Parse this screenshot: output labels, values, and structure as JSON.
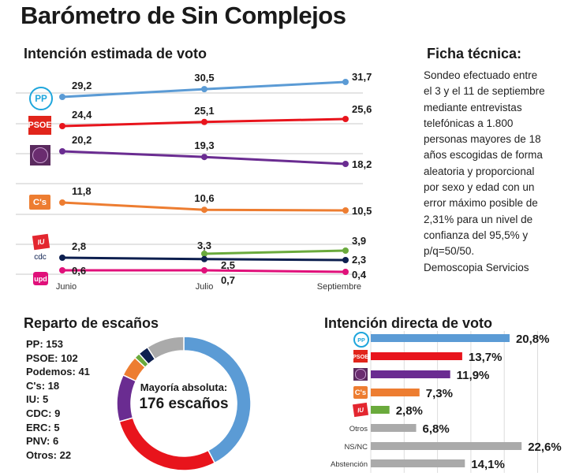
{
  "title": "Barómetro de Sin Complejos",
  "ficha": {
    "heading": "Ficha técnica:",
    "text": "Sondeo efectuado entre\nel 3 y el 11 de septiembre\nmediante entrevistas\ntelefónicas a 1.800\npersonas mayores de 18\naños escogidas de forma\naleatoria y proporcional\n por sexo y edad con un\nerror máximo posible de\n2,31% para un nivel de\nconfianza del 95,5% y\np/q=50/50.\nDemoscopia Servicios"
  },
  "logos": {
    "pp": "PP",
    "psoe": "PSOE",
    "cs": "C's",
    "iu": "IU",
    "cdc": "cdc",
    "upd": "upd"
  },
  "colors": {
    "pp": "#5b9bd5",
    "psoe": "#e8141c",
    "podemos": "#6a2c91",
    "cs": "#ed7d31",
    "iu": "#6aaa3c",
    "cdc": "#0d1f4f",
    "upd": "#e0107a",
    "otros": "#aaaaaa"
  },
  "chart_data": [
    {
      "type": "line",
      "title": "Intención estimada de voto",
      "categories": [
        "Junio",
        "Julio",
        "Septiembre"
      ],
      "grid": true,
      "series": [
        {
          "party": "pp",
          "values": [
            29.2,
            30.5,
            31.7
          ],
          "labels": [
            "29,2",
            "30,5",
            "31,7"
          ]
        },
        {
          "party": "psoe",
          "values": [
            24.4,
            25.1,
            25.6
          ],
          "labels": [
            "24,4",
            "25,1",
            "25,6"
          ]
        },
        {
          "party": "podemos",
          "values": [
            20.2,
            19.3,
            18.2
          ],
          "labels": [
            "20,2",
            "19,3",
            "18,2"
          ]
        },
        {
          "party": "cs",
          "values": [
            11.8,
            10.6,
            10.5
          ],
          "labels": [
            "11,8",
            "10,6",
            "10,5"
          ]
        },
        {
          "party": "iu",
          "values": [
            null,
            3.3,
            3.9
          ],
          "labels": [
            "",
            "3,3",
            "3,9"
          ]
        },
        {
          "party": "cdc",
          "values": [
            2.8,
            2.5,
            2.3
          ],
          "labels": [
            "2,8",
            "2,5",
            "2,3"
          ]
        },
        {
          "party": "upd",
          "values": [
            0.6,
            0.7,
            0.4
          ],
          "labels": [
            "0,6",
            "0,7",
            "0,4"
          ]
        }
      ]
    },
    {
      "type": "pie",
      "title": "Reparto de escaños",
      "center_text": [
        "Mayoría absoluta:",
        "176 escaños"
      ],
      "legend": [
        "PP: 153",
        "PSOE: 102",
        "Podemos: 41",
        "C's: 18",
        "IU: 5",
        "CDC: 9",
        "ERC: 5",
        "PNV: 6",
        "Otros: 22"
      ],
      "slices": [
        {
          "party": "pp",
          "value": 153
        },
        {
          "party": "psoe",
          "value": 102
        },
        {
          "party": "podemos",
          "value": 41
        },
        {
          "party": "cs",
          "value": 18
        },
        {
          "party": "iu",
          "value": 5
        },
        {
          "party": "cdc",
          "value": 9
        },
        {
          "party": "otros",
          "value": 33
        }
      ]
    },
    {
      "type": "bar",
      "title": "Intención directa de voto",
      "grid": true,
      "bars": [
        {
          "party": "pp",
          "category": "",
          "value": 20.8,
          "label": "20,8%"
        },
        {
          "party": "psoe",
          "category": "",
          "value": 13.7,
          "label": "13,7%"
        },
        {
          "party": "podemos",
          "category": "",
          "value": 11.9,
          "label": "11,9%"
        },
        {
          "party": "cs",
          "category": "",
          "value": 7.3,
          "label": "7,3%"
        },
        {
          "party": "iu",
          "category": "",
          "value": 2.8,
          "label": "2,8%"
        },
        {
          "party": "otros",
          "category": "Otros",
          "value": 6.8,
          "label": "6,8%"
        },
        {
          "party": "otros",
          "category": "NS/NC",
          "value": 22.6,
          "label": "22,6%"
        },
        {
          "party": "otros",
          "category": "Abstención",
          "value": 14.1,
          "label": "14,1%"
        }
      ]
    }
  ]
}
